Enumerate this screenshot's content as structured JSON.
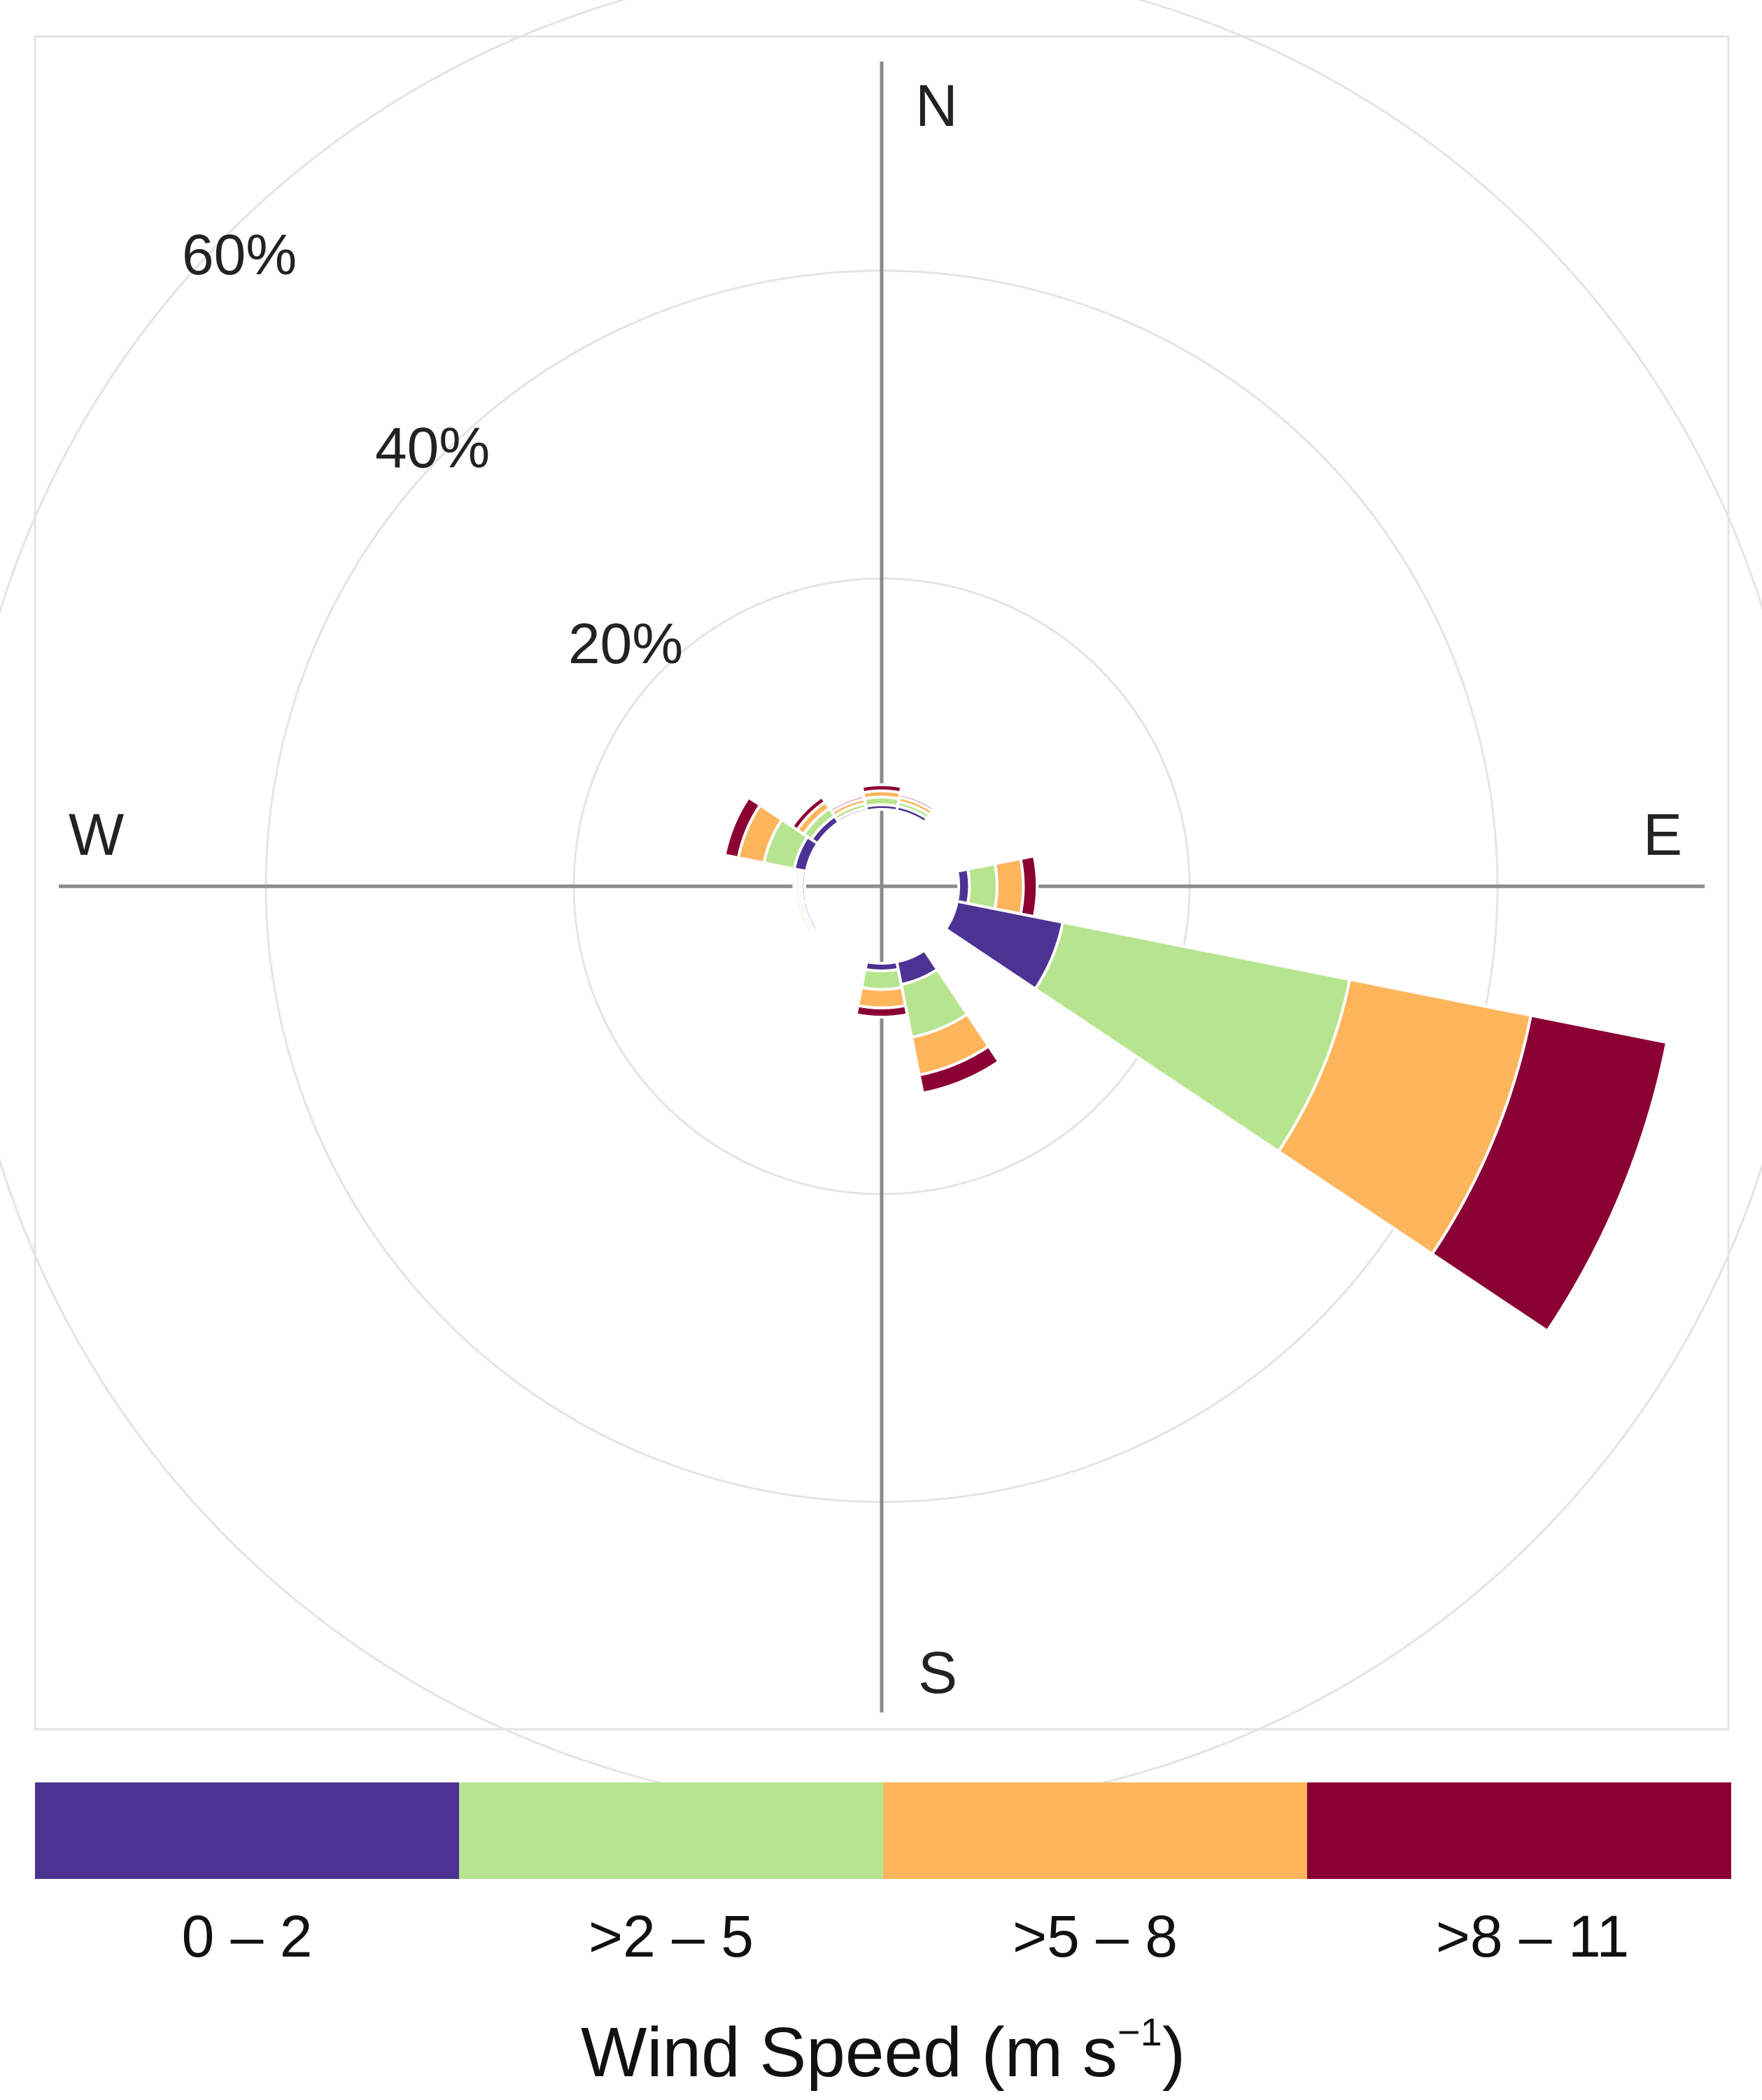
{
  "chart_data": {
    "type": "wind-rose",
    "title": "",
    "directions": {
      "north": "N",
      "east": "E",
      "south": "S",
      "west": "W"
    },
    "ring_labels": [
      "20%",
      "40%",
      "60%"
    ],
    "ring_values": [
      20,
      40,
      60
    ],
    "rmax": 60,
    "sector_width_deg": 22.5,
    "inner_hole_pct": 5,
    "legend_title": "Wind Speed (m s",
    "legend_title_sup": "−1",
    "legend_title_close": ")",
    "speed_bins": [
      {
        "label": "0 – 2",
        "color": "#4c3393"
      },
      {
        "label": ">2 – 5",
        "color": "#b7e58f"
      },
      {
        "label": ">5 – 8",
        "color": "#fdb55c"
      },
      {
        "label": ">8 – 11",
        "color": "#8b0032"
      }
    ],
    "sectors": [
      {
        "direction_deg": 0,
        "values": [
          0.3,
          0.5,
          0.4,
          0.4
        ]
      },
      {
        "direction_deg": 22.5,
        "values": [
          0.3,
          0.3,
          0.3,
          0.2
        ]
      },
      {
        "direction_deg": 45,
        "values": [
          0.1,
          0.1,
          0.1,
          0.1
        ]
      },
      {
        "direction_deg": 67.5,
        "values": [
          0.1,
          0.1,
          0.1,
          0.1
        ]
      },
      {
        "direction_deg": 90,
        "values": [
          0.7,
          1.8,
          1.7,
          0.9
        ]
      },
      {
        "direction_deg": 112.5,
        "values": [
          7.0,
          19.0,
          12.0,
          9.0
        ]
      },
      {
        "direction_deg": 135,
        "values": [
          0.0,
          0.1,
          0.1,
          0.0
        ]
      },
      {
        "direction_deg": 157.5,
        "values": [
          1.5,
          3.5,
          2.5,
          1.2
        ]
      },
      {
        "direction_deg": 180,
        "values": [
          0.5,
          1.2,
          1.2,
          0.6
        ]
      },
      {
        "direction_deg": 202.5,
        "values": [
          0.1,
          0.1,
          0.1,
          0.1
        ]
      },
      {
        "direction_deg": 225,
        "values": [
          0.1,
          0.1,
          0.1,
          0.1
        ]
      },
      {
        "direction_deg": 247.5,
        "values": [
          0.2,
          0.2,
          0.2,
          0.1
        ]
      },
      {
        "direction_deg": 270,
        "values": [
          0.2,
          0.2,
          0.2,
          0.1
        ]
      },
      {
        "direction_deg": 292.5,
        "values": [
          0.8,
          2.0,
          1.7,
          0.9
        ]
      },
      {
        "direction_deg": 315,
        "values": [
          0.5,
          0.6,
          0.5,
          0.4
        ]
      },
      {
        "direction_deg": 337.5,
        "values": [
          0.2,
          0.3,
          0.3,
          0.2
        ]
      }
    ]
  }
}
